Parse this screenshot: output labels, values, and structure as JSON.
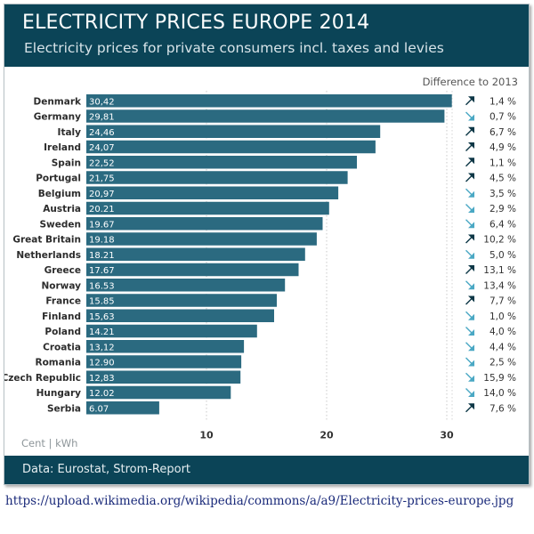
{
  "header": {
    "title": "ELECTRICITY PRICES EUROPE 2014",
    "subtitle": "Electricity prices for private consumers incl. taxes and levies"
  },
  "diff_header": "Difference to 2013",
  "unit_label": "Cent | kWh",
  "footer": {
    "source": "Data: Eurostat, Strom-Report"
  },
  "link": "https://upload.wikimedia.org/wikipedia/commons/a/a9/Electricity-prices-europe.jpg",
  "colors": {
    "header": "#0b4457",
    "bar": "#2b6a80",
    "arrow_up": "#0d3746",
    "arrow_down": "#4aa8c4",
    "gridline": "#c9c9c9"
  },
  "chart_data": {
    "type": "bar",
    "orientation": "horizontal",
    "title": "ELECTRICITY PRICES EUROPE 2014",
    "subtitle": "Electricity prices for private consumers incl. taxes and levies",
    "xlabel": "Cent | kWh",
    "ylabel": "",
    "xlim": [
      0,
      31
    ],
    "xticks": [
      10,
      20,
      30
    ],
    "grid": "vertical-dotted",
    "categories": [
      "Denmark",
      "Germany",
      "Italy",
      "Ireland",
      "Spain",
      "Portugal",
      "Belgium",
      "Austria",
      "Sweden",
      "Great Britain",
      "Netherlands",
      "Greece",
      "Norway",
      "France",
      "Finland",
      "Poland",
      "Croatia",
      "Romania",
      "Czech Republic",
      "Hungary",
      "Serbia"
    ],
    "values": [
      30.42,
      29.81,
      24.46,
      24.07,
      22.52,
      21.75,
      20.97,
      20.21,
      19.67,
      19.18,
      18.21,
      17.67,
      16.53,
      15.85,
      15.63,
      14.21,
      13.12,
      12.9,
      12.83,
      12.02,
      6.07
    ],
    "value_labels": [
      "30,42",
      "29,81",
      "24,46",
      "24,07",
      "22,52",
      "21,75",
      "20,97",
      "20.21",
      "19.67",
      "19.18",
      "18.21",
      "17.67",
      "16.53",
      "15.85",
      "15,63",
      "14.21",
      "13,12",
      "12.90",
      "12,83",
      "12.02",
      "6.07"
    ],
    "difference_to_2013": {
      "label": "Difference to 2013",
      "values_percent": [
        1.4,
        -0.7,
        6.7,
        4.9,
        1.1,
        4.5,
        -3.5,
        -2.9,
        -6.4,
        10.2,
        -5.0,
        13.1,
        -13.4,
        7.7,
        -1.0,
        -4.0,
        -4.4,
        -2.5,
        -15.9,
        -14.0,
        7.6
      ],
      "labels": [
        "1,4 %",
        "0,7 %",
        "6,7 %",
        "4,9 %",
        "1,1 %",
        "4,5 %",
        "3,5 %",
        "2,9 %",
        "6,4 %",
        "10,2 %",
        "5,0 %",
        "13,1 %",
        "13,4 %",
        "7,7 %",
        "1,0 %",
        "4,0 %",
        "4,4 %",
        "2,5 %",
        "15,9 %",
        "14,0 %",
        "7,6 %"
      ],
      "direction": [
        "up",
        "down",
        "up",
        "up",
        "up",
        "up",
        "down",
        "down",
        "down",
        "up",
        "down",
        "up",
        "down",
        "up",
        "down",
        "down",
        "down",
        "down",
        "down",
        "down",
        "up"
      ]
    }
  }
}
